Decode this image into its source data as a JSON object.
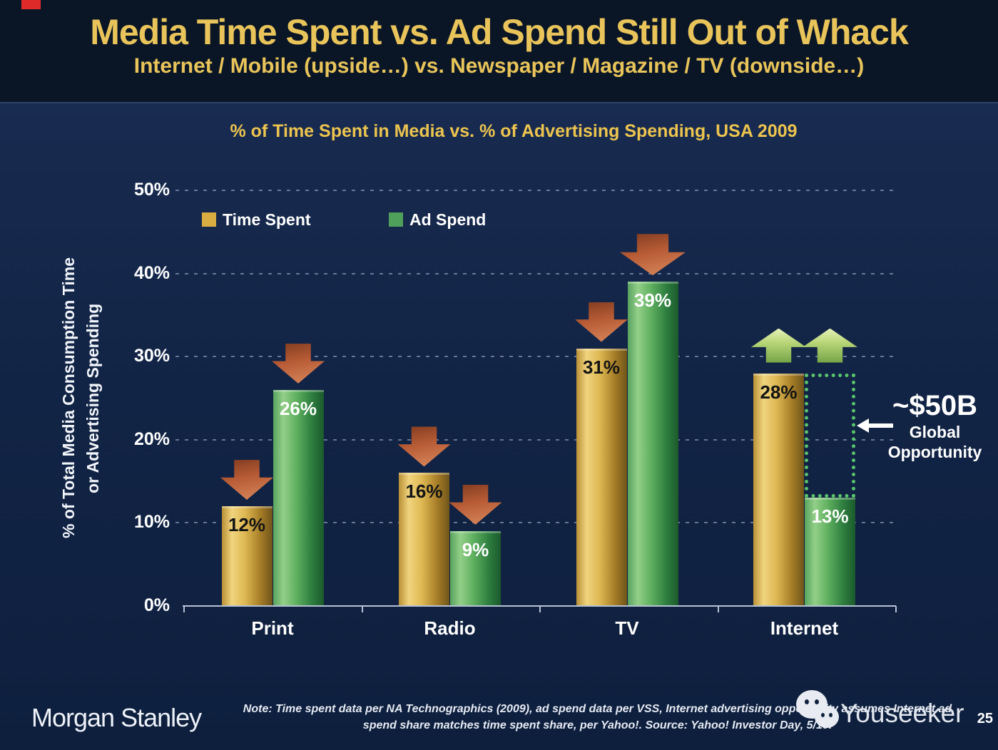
{
  "page": {
    "background": "#10213f"
  },
  "header": {
    "title": "Media Time Spent vs. Ad Spend Still Out of Whack",
    "subtitle": "Internet / Mobile (upside…) vs. Newspaper / Magazine / TV (downside…)"
  },
  "chart_data": {
    "type": "bar",
    "title": "% of Time Spent in Media vs. % of Advertising Spending, USA 2009",
    "y_axis": {
      "label_line1": "% of Total Media Consumption Time",
      "label_line2": "or Advertising Spending",
      "ticks": [
        {
          "label": "0%",
          "value": 0
        },
        {
          "label": "10%",
          "value": 10
        },
        {
          "label": "20%",
          "value": 20
        },
        {
          "label": "30%",
          "value": 30
        },
        {
          "label": "40%",
          "value": 40
        },
        {
          "label": "50%",
          "value": 50
        }
      ],
      "range": [
        0,
        50
      ]
    },
    "grid": true,
    "legend_position": "top-left-inside",
    "categories": [
      "Print",
      "Radio",
      "TV",
      "Internet"
    ],
    "series": [
      {
        "name": "Time Spent",
        "swatch": "#d9ad41",
        "values": [
          12,
          16,
          31,
          28
        ],
        "data_labels": [
          "12%",
          "16%",
          "31%",
          "28%"
        ]
      },
      {
        "name": "Ad Spend",
        "swatch": "#4fa05a",
        "values": [
          26,
          9,
          39,
          13
        ],
        "data_labels": [
          "26%",
          "9%",
          "39%",
          "13%"
        ]
      }
    ],
    "colors": {
      "down_arrow": "#c06a42",
      "up_arrow": "#a8c96a",
      "gap_box": "#58c46b",
      "title_gold": "#e9c45a",
      "bar_gold": "#d9ad41",
      "bar_green": "#4fa05a"
    },
    "annotations": {
      "trend_arrows": [
        {
          "category": "Print",
          "series": "Time Spent",
          "direction": "down"
        },
        {
          "category": "Print",
          "series": "Ad Spend",
          "direction": "down"
        },
        {
          "category": "Radio",
          "series": "Time Spent",
          "direction": "down"
        },
        {
          "category": "Radio",
          "series": "Ad Spend",
          "direction": "down"
        },
        {
          "category": "TV",
          "series": "Time Spent",
          "direction": "down"
        },
        {
          "category": "TV",
          "series": "Ad Spend",
          "direction": "down",
          "size": "large"
        },
        {
          "category": "Internet",
          "series": "Time Spent",
          "direction": "up"
        },
        {
          "category": "Internet",
          "series": "Ad Spend",
          "direction": "up"
        }
      ],
      "gap_box": {
        "category": "Internet",
        "from_series": "Time Spent",
        "to_series": "Ad Spend"
      },
      "opportunity": {
        "value": "~$50B",
        "line2": "Global",
        "line3": "Opportunity"
      }
    }
  },
  "footer": {
    "logo": "Morgan Stanley",
    "note_line1": "Note: Time spent data per NA Technographics (2009), ad spend data per VSS, Internet advertising opportunity assumes Internet ad",
    "note_line2": "spend share matches time spent share, per Yahoo!. Source: Yahoo! Investor Day, 5/10.",
    "watermark": "Youseeker",
    "page_number": "25"
  }
}
